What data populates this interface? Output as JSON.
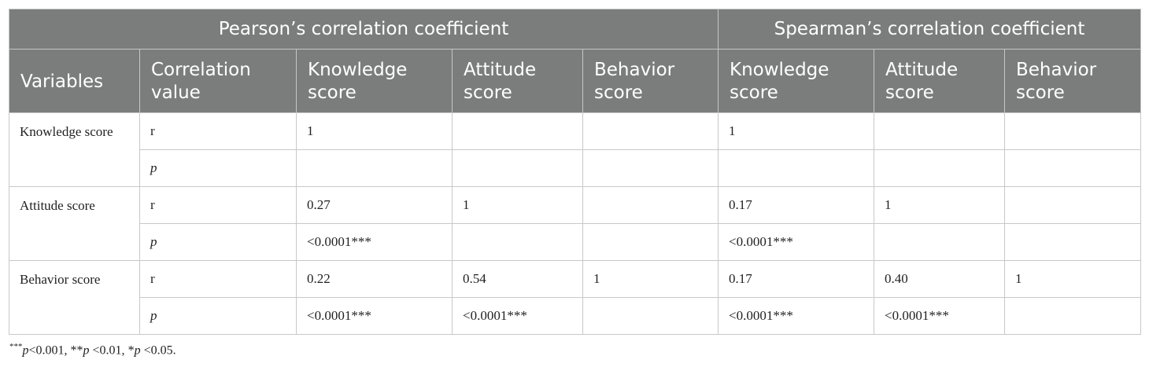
{
  "table": {
    "group_headers": {
      "pearson": "Pearson’s correlation coefficient",
      "spearman": "Spearman’s correlation coefficient"
    },
    "columns": [
      "Variables",
      "Correlation value",
      "Knowledge score",
      "Attitude score",
      "Behavior score",
      "Knowledge score",
      "Attitude score",
      "Behavior score"
    ],
    "rows": [
      {
        "variable": "Knowledge score",
        "r": {
          "label": "r",
          "cells": [
            "1",
            "",
            "",
            "1",
            "",
            ""
          ]
        },
        "p": {
          "label": "p",
          "cells": [
            "",
            "",
            "",
            "",
            "",
            ""
          ]
        }
      },
      {
        "variable": "Attitude score",
        "r": {
          "label": "r",
          "cells": [
            "0.27",
            "1",
            "",
            "0.17",
            "1",
            ""
          ]
        },
        "p": {
          "label": "p",
          "cells": [
            "<0.0001***",
            "",
            "",
            "<0.0001***",
            "",
            ""
          ]
        }
      },
      {
        "variable": "Behavior score",
        "r": {
          "label": "r",
          "cells": [
            "0.22",
            "0.54",
            "1",
            "0.17",
            "0.40",
            "1"
          ]
        },
        "p": {
          "label": "p",
          "cells": [
            "<0.0001***",
            "<0.0001***",
            "",
            "<0.0001***",
            "<0.0001***",
            ""
          ]
        }
      }
    ]
  },
  "footnote": {
    "sup1": "***",
    "p1": "p",
    "t1": "<0.001, ",
    "s2": "**",
    "p2": "p",
    "t2": " <0.01, ",
    "s3": "*",
    "p3": "p",
    "t3": " <0.05."
  }
}
